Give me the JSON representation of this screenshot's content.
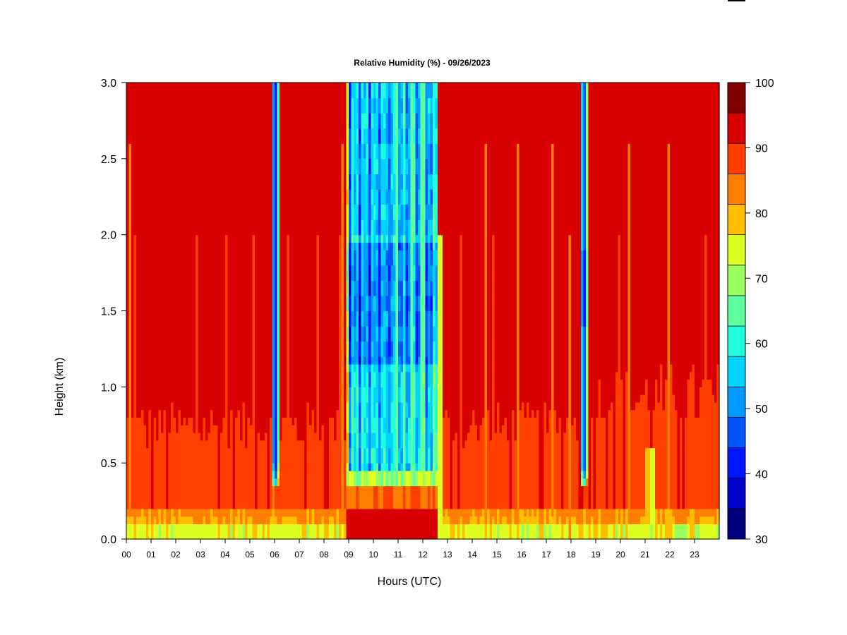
{
  "chart_data": {
    "type": "heatmap",
    "title": "Relative Humidity (%) - 09/26/2023",
    "xlabel": "Hours (UTC)",
    "ylabel": "Height (km)",
    "xlim": [
      0,
      24
    ],
    "ylim": [
      0,
      3
    ],
    "x_ticks": [
      "00",
      "01",
      "02",
      "03",
      "04",
      "05",
      "06",
      "07",
      "08",
      "09",
      "10",
      "11",
      "12",
      "13",
      "14",
      "15",
      "16",
      "17",
      "18",
      "19",
      "20",
      "21",
      "22",
      "23"
    ],
    "y_ticks": [
      "0.0",
      "0.5",
      "1.0",
      "1.5",
      "2.0",
      "2.5",
      "3.0"
    ],
    "colorbar": {
      "levels": [
        30,
        35,
        40,
        45,
        50,
        55,
        60,
        65,
        70,
        75,
        80,
        85,
        90,
        95,
        100
      ],
      "tick_labels": [
        "30",
        "40",
        "50",
        "60",
        "70",
        "80",
        "90",
        "100"
      ],
      "colors": [
        "#00007f",
        "#0000c8",
        "#0015ff",
        "#0055ff",
        "#0099ff",
        "#00d5ff",
        "#22ffdd",
        "#5fffa0",
        "#99ff5f",
        "#ddff22",
        "#ffbf00",
        "#ff7f00",
        "#ff3f00",
        "#d80000",
        "#7f0000"
      ]
    },
    "features": [
      {
        "description_hours": [
          5.9,
          6.15
        ],
        "min_rh": 40,
        "from_km": 0.35,
        "to_km": 3.0
      },
      {
        "description_hours": [
          8.95,
          12.6
        ],
        "min_rh": 45,
        "from_km": 0.38,
        "to_km": 3.0
      },
      {
        "description_hours": [
          18.4,
          18.65
        ],
        "min_rh": 40,
        "from_km": 0.35,
        "to_km": 3.0
      }
    ]
  }
}
